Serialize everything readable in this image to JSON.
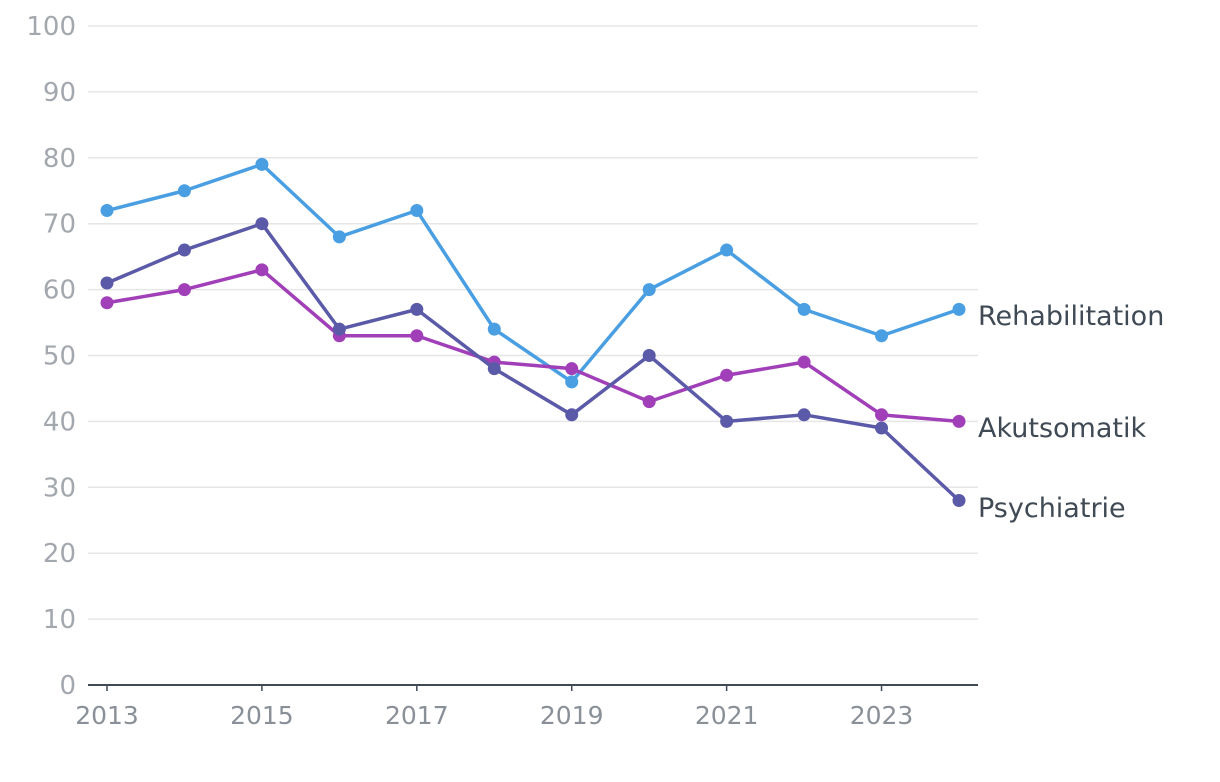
{
  "chart_data": {
    "type": "line",
    "title": "",
    "xlabel": "",
    "ylabel": "",
    "x": [
      2013,
      2014,
      2015,
      2016,
      2017,
      2018,
      2019,
      2020,
      2021,
      2022,
      2023,
      2024
    ],
    "x_tick_labels": [
      "2013",
      "2015",
      "2017",
      "2019",
      "2021",
      "2023"
    ],
    "x_tick_values": [
      2013,
      2015,
      2017,
      2019,
      2021,
      2023
    ],
    "xlim": [
      2012.75,
      2024.25
    ],
    "ylim": [
      0,
      100
    ],
    "y_ticks": [
      0,
      10,
      20,
      30,
      40,
      50,
      60,
      70,
      80,
      90,
      100
    ],
    "y_tick_labels": [
      "0",
      "10",
      "20",
      "30",
      "40",
      "50",
      "60",
      "70",
      "80",
      "90",
      "100"
    ],
    "grid": true,
    "legend_placement": "end-of-line labels on the right",
    "series": [
      {
        "name": "Rehabilitation",
        "color": "#4a9fe3",
        "values": [
          72,
          75,
          79,
          68,
          72,
          54,
          46,
          60,
          66,
          57,
          53,
          57
        ]
      },
      {
        "name": "Akutsomatik",
        "color": "#a13fb9",
        "values": [
          58,
          60,
          63,
          53,
          53,
          49,
          48,
          43,
          47,
          49,
          41,
          40
        ]
      },
      {
        "name": "Psychiatrie",
        "color": "#5b5aa8",
        "values": [
          61,
          66,
          70,
          54,
          57,
          48,
          41,
          50,
          40,
          41,
          39,
          28
        ]
      }
    ]
  }
}
